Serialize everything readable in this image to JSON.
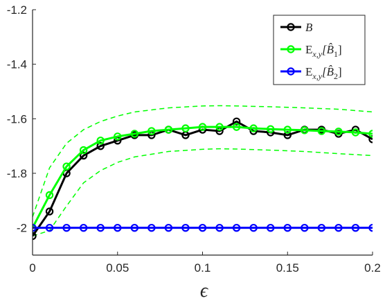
{
  "chart_data": {
    "type": "line",
    "title": "",
    "xlabel": "ϵ",
    "ylabel": "",
    "xlim": [
      0,
      0.2
    ],
    "ylim": [
      -2.1,
      -1.2
    ],
    "x_ticks": [
      0,
      0.05,
      0.1,
      0.15,
      0.2
    ],
    "x_tick_labels": [
      "0",
      "0.05",
      "0.1",
      "0.15",
      "0.2"
    ],
    "y_ticks": [
      -2.0,
      -1.8,
      -1.6,
      -1.4,
      -1.2
    ],
    "y_tick_labels": [
      "-2",
      "-1.8",
      "-1.6",
      "-1.4",
      "-1.2"
    ],
    "grid": false,
    "legend_position": "top-right",
    "x": [
      0,
      0.01,
      0.02,
      0.03,
      0.04,
      0.05,
      0.06,
      0.07,
      0.08,
      0.09,
      0.1,
      0.11,
      0.12,
      0.13,
      0.14,
      0.15,
      0.16,
      0.17,
      0.18,
      0.19,
      0.2
    ],
    "series": [
      {
        "name": "B",
        "legend_main": "B",
        "legend_sub": "",
        "color": "#000000",
        "markers": true,
        "values": [
          -2.03,
          -1.94,
          -1.8,
          -1.735,
          -1.7,
          -1.68,
          -1.66,
          -1.66,
          -1.64,
          -1.66,
          -1.64,
          -1.645,
          -1.61,
          -1.645,
          -1.65,
          -1.66,
          -1.64,
          -1.64,
          -1.655,
          -1.64,
          -1.675
        ]
      },
      {
        "name": "E_{x,y}[B̂_1]",
        "legend_main": "E",
        "legend_sub": "x,y",
        "legend_arg": "[B̂",
        "legend_arg_sub": "1",
        "legend_close": "]",
        "color": "#00ff00",
        "markers": true,
        "values": [
          -2.0,
          -1.88,
          -1.775,
          -1.715,
          -1.68,
          -1.665,
          -1.655,
          -1.645,
          -1.64,
          -1.635,
          -1.63,
          -1.63,
          -1.63,
          -1.635,
          -1.638,
          -1.64,
          -1.642,
          -1.645,
          -1.647,
          -1.65,
          -1.655
        ]
      },
      {
        "name": "E_{x,y}[B̂_2]",
        "legend_main": "E",
        "legend_sub": "x,y",
        "legend_arg": "[B̂",
        "legend_arg_sub": "2",
        "legend_close": "]",
        "color": "#0000ff",
        "markers": true,
        "values": [
          -2.0,
          -2.0,
          -2.0,
          -2.0,
          -2.0,
          -2.0,
          -2.0,
          -2.0,
          -2.0,
          -2.0,
          -2.0,
          -2.0,
          -2.0,
          -2.0,
          -2.0,
          -2.0,
          -2.0,
          -2.0,
          -2.0,
          -2.0,
          -2.0
        ]
      }
    ],
    "bands": [
      {
        "of": "E_{x,y}[B̂_1]",
        "color": "#00ff00",
        "style": "dashed",
        "upper_x": [
          0,
          0.01,
          0.02,
          0.03,
          0.04,
          0.05,
          0.06,
          0.08,
          0.1,
          0.11,
          0.12,
          0.14,
          0.16,
          0.18,
          0.2
        ],
        "upper": [
          -1.96,
          -1.78,
          -1.69,
          -1.64,
          -1.61,
          -1.59,
          -1.575,
          -1.56,
          -1.553,
          -1.552,
          -1.553,
          -1.556,
          -1.56,
          -1.565,
          -1.575
        ],
        "lower_x": [
          0,
          0.01,
          0.02,
          0.03,
          0.04,
          0.05,
          0.06,
          0.08,
          0.1,
          0.11,
          0.12,
          0.14,
          0.16,
          0.18,
          0.2
        ],
        "lower": [
          -2.03,
          -2.01,
          -1.92,
          -1.835,
          -1.79,
          -1.76,
          -1.74,
          -1.72,
          -1.712,
          -1.71,
          -1.711,
          -1.715,
          -1.72,
          -1.728,
          -1.735
        ]
      }
    ]
  }
}
